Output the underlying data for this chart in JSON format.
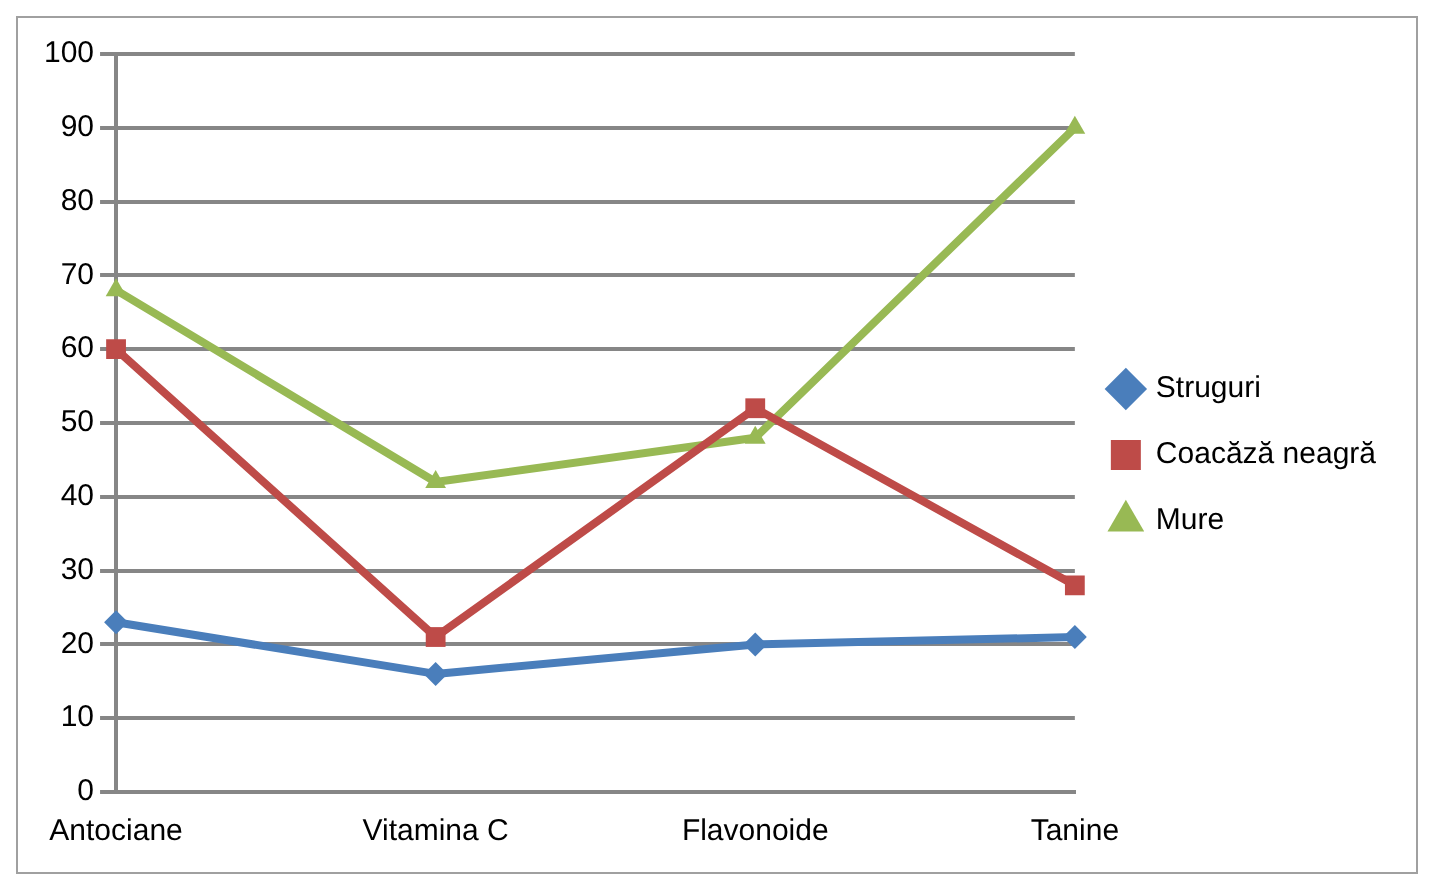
{
  "chart_data": {
    "type": "line",
    "categories": [
      "Antociane",
      "Vitamina C",
      "Flavonoide",
      "Tanine"
    ],
    "series": [
      {
        "name": "Struguri",
        "color": "#4a7ebb",
        "marker": "diamond",
        "values": [
          23,
          16,
          20,
          21
        ]
      },
      {
        "name": "Coacăză neagră",
        "color": "#be4b48",
        "marker": "square",
        "values": [
          60,
          21,
          52,
          28
        ]
      },
      {
        "name": "Mure",
        "color": "#98b954",
        "marker": "triangle",
        "values": [
          68,
          42,
          48,
          90
        ]
      }
    ],
    "ylim": [
      0,
      100
    ],
    "yticks": [
      0,
      10,
      20,
      30,
      40,
      50,
      60,
      70,
      80,
      90,
      100
    ],
    "grid": "y",
    "legend": "right",
    "line_style": "solid"
  }
}
